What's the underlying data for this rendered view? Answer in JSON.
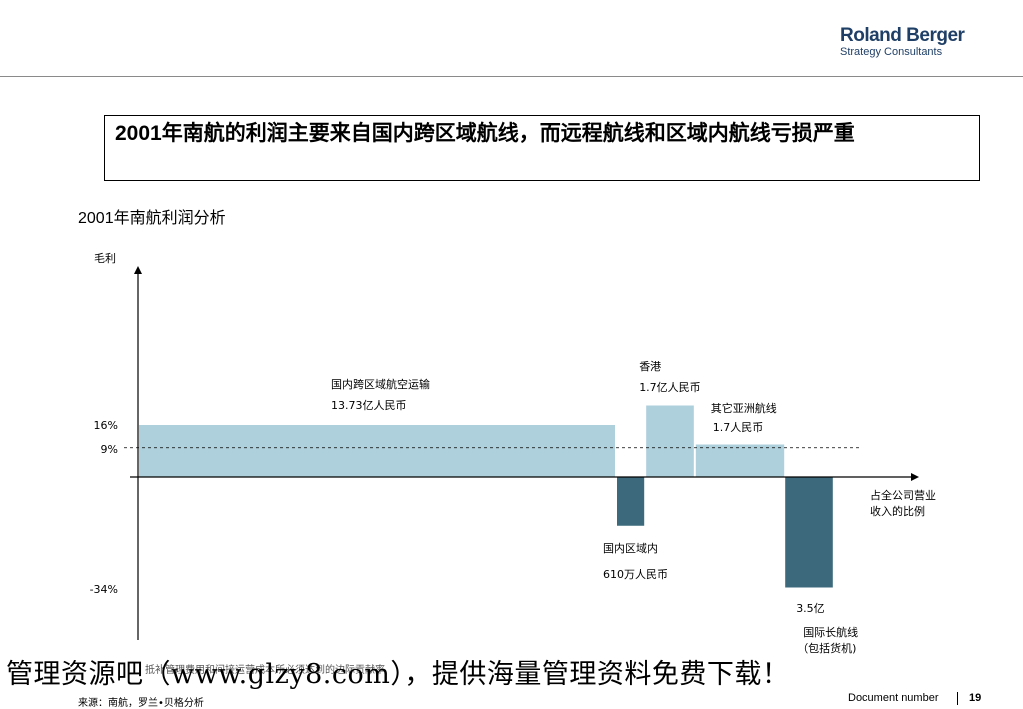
{
  "header": {
    "logo_main": "Roland Berger",
    "logo_sub": "Strategy Consultants"
  },
  "headline": "2001年南航的利润主要来自国内跨区域航线，而远程航线和区域内航线亏损严重",
  "subtitle": "2001年南航利润分析",
  "chart_data": {
    "type": "bar",
    "subtype": "variable-width (marimekko-style) profit bars",
    "ylabel": "毛利",
    "xlabel": "占全公司营业收入的比例",
    "y_ticks": [
      "16%",
      "9%",
      "-34%"
    ],
    "reference_line": {
      "value": 9,
      "label": "9%",
      "style": "dashed"
    },
    "ylim": [
      -45,
      35
    ],
    "segments": [
      {
        "name": "国内跨区域航空运输",
        "amount": "13.73亿人民币",
        "margin_pct": 16,
        "revenue_share_pct": 70,
        "color": "#aecfdc"
      },
      {
        "name": "国内区域内",
        "amount": "610万人民币",
        "margin_pct": -15,
        "revenue_share_pct": 4,
        "color": "#3c6a7c"
      },
      {
        "name": "香港",
        "amount": "1.7亿人民币",
        "margin_pct": 22,
        "revenue_share_pct": 7,
        "color": "#aecfdc"
      },
      {
        "name": "其它亚洲航线",
        "amount": "1.7人民币",
        "margin_pct": 10,
        "revenue_share_pct": 13,
        "color": "#aecfdc"
      },
      {
        "name": "国际长航线",
        "name_detail": "（包括货机)",
        "amount": "3.5亿",
        "margin_pct": -34,
        "revenue_share_pct": 7,
        "color": "#3c6a7c"
      }
    ],
    "note": "抵补管理费用和间接运营成本所必须达到的边际贡献率"
  },
  "watermark": "管理资源吧（www.glzy8.com），提供海量管理资料免费下载！",
  "footer": {
    "source": "来源：南航，罗兰•贝格分析",
    "doc_number_label": "Document number",
    "page_number": "19"
  }
}
